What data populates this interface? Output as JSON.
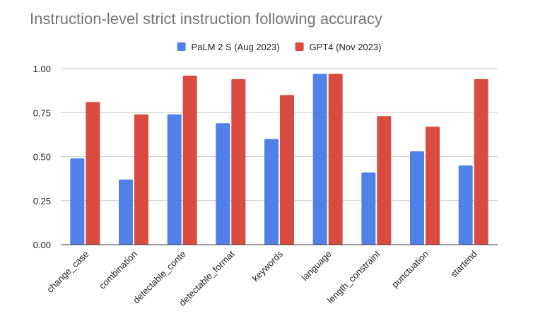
{
  "chart_data": {
    "type": "bar",
    "title": "Instruction-level strict instruction following accuracy",
    "xlabel": "",
    "ylabel": "",
    "ylim": [
      0,
      1
    ],
    "yticks": [
      0,
      0.25,
      0.5,
      0.75,
      1
    ],
    "ytick_labels": [
      "0.00",
      "0.25",
      "0.50",
      "0.75",
      "1.00"
    ],
    "grid": true,
    "legend_position": "top",
    "categories": [
      "change_case",
      "combination",
      "detectable_conte",
      "detectable_format",
      "keywords",
      "language",
      "length_constraint",
      "punctuation",
      "startend"
    ],
    "series": [
      {
        "name": "PaLM 2 S (Aug 2023)",
        "color": "#4f81e8",
        "values": [
          0.49,
          0.37,
          0.74,
          0.69,
          0.6,
          0.97,
          0.41,
          0.53,
          0.45
        ]
      },
      {
        "name": "GPT4 (Nov 2023)",
        "color": "#d84b3e",
        "values": [
          0.81,
          0.74,
          0.96,
          0.94,
          0.85,
          0.97,
          0.73,
          0.67,
          0.94
        ]
      }
    ]
  }
}
